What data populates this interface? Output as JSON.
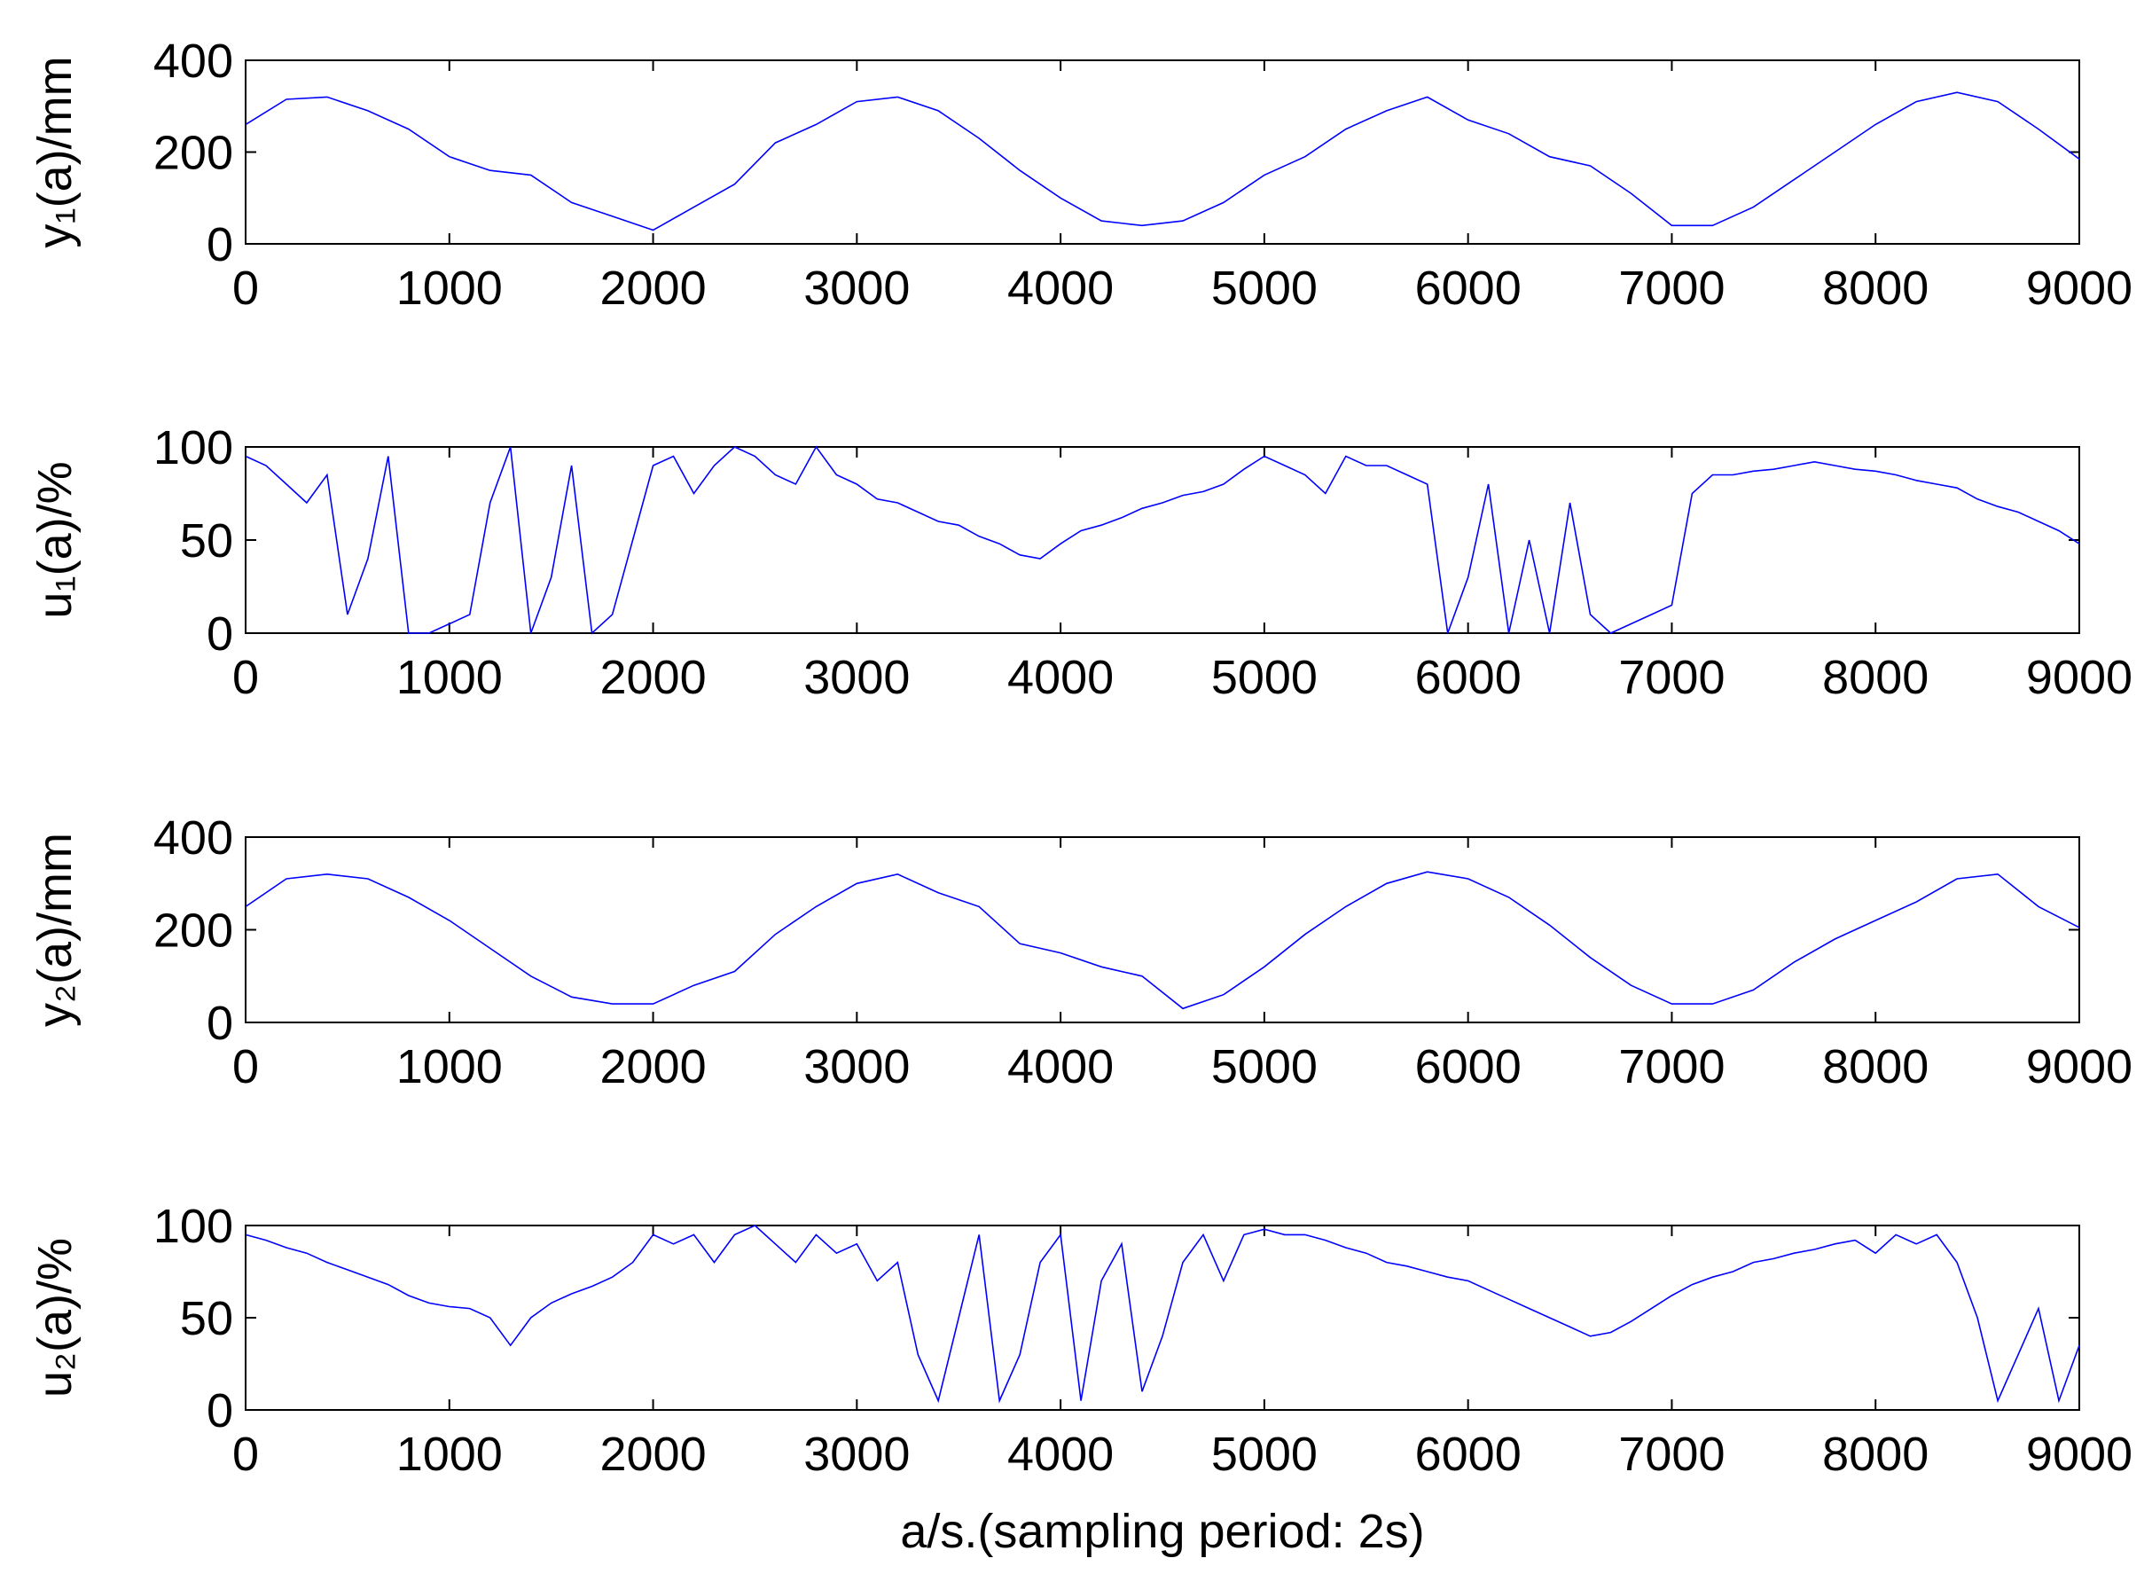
{
  "chart_data": [
    {
      "type": "line",
      "ylabel": "y₁(a)/mm",
      "color": "#0000ff",
      "x": [
        0,
        200,
        400,
        600,
        800,
        1000,
        1200,
        1400,
        1600,
        1800,
        2000,
        2200,
        2400,
        2600,
        2800,
        3000,
        3200,
        3400,
        3600,
        3800,
        4000,
        4200,
        4400,
        4600,
        4800,
        5000,
        5200,
        5400,
        5600,
        5800,
        6000,
        6200,
        6400,
        6600,
        6800,
        7000,
        7200,
        7400,
        7600,
        7800,
        8000,
        8200,
        8400,
        8600,
        8800,
        9000
      ],
      "values": [
        260,
        315,
        320,
        290,
        250,
        190,
        160,
        150,
        90,
        60,
        30,
        80,
        130,
        220,
        260,
        310,
        320,
        290,
        230,
        160,
        100,
        50,
        40,
        50,
        90,
        150,
        190,
        250,
        290,
        320,
        270,
        240,
        190,
        170,
        110,
        40,
        40,
        80,
        140,
        200,
        260,
        310,
        330,
        310,
        250,
        185
      ],
      "xlim": [
        0,
        9000
      ],
      "xticks": [
        0,
        1000,
        2000,
        3000,
        4000,
        5000,
        6000,
        7000,
        8000,
        9000
      ],
      "ylim": [
        0,
        400
      ],
      "yticks": [
        0,
        200,
        400
      ]
    },
    {
      "type": "line",
      "ylabel": "u₁(a)/%",
      "color": "#0000ff",
      "x": [
        0,
        100,
        200,
        300,
        400,
        500,
        600,
        700,
        800,
        900,
        1000,
        1100,
        1200,
        1300,
        1400,
        1500,
        1600,
        1700,
        1800,
        1900,
        2000,
        2100,
        2200,
        2300,
        2400,
        2500,
        2600,
        2700,
        2800,
        2900,
        3000,
        3100,
        3200,
        3300,
        3400,
        3500,
        3600,
        3700,
        3800,
        3900,
        4000,
        4100,
        4200,
        4300,
        4400,
        4500,
        4600,
        4700,
        4800,
        4900,
        5000,
        5100,
        5200,
        5300,
        5400,
        5500,
        5600,
        5700,
        5800,
        5900,
        6000,
        6100,
        6200,
        6300,
        6400,
        6500,
        6600,
        6700,
        6800,
        6900,
        7000,
        7100,
        7200,
        7300,
        7400,
        7500,
        7600,
        7700,
        7800,
        7900,
        8000,
        8100,
        8200,
        8300,
        8400,
        8500,
        8600,
        8700,
        8800,
        8900,
        9000
      ],
      "values": [
        95,
        90,
        80,
        70,
        85,
        10,
        40,
        95,
        0,
        0,
        5,
        10,
        70,
        100,
        0,
        30,
        90,
        0,
        10,
        50,
        90,
        95,
        75,
        90,
        100,
        95,
        85,
        80,
        100,
        85,
        80,
        72,
        70,
        65,
        60,
        58,
        52,
        48,
        42,
        40,
        48,
        55,
        58,
        62,
        67,
        70,
        74,
        76,
        80,
        88,
        95,
        90,
        85,
        75,
        95,
        90,
        90,
        85,
        80,
        0,
        30,
        80,
        0,
        50,
        0,
        70,
        10,
        0,
        5,
        10,
        15,
        75,
        85,
        85,
        87,
        88,
        90,
        92,
        90,
        88,
        87,
        85,
        82,
        80,
        78,
        72,
        68,
        65,
        60,
        55,
        48
      ],
      "xlim": [
        0,
        9000
      ],
      "xticks": [
        0,
        1000,
        2000,
        3000,
        4000,
        5000,
        6000,
        7000,
        8000,
        9000
      ],
      "ylim": [
        0,
        100
      ],
      "yticks": [
        0,
        50,
        100
      ]
    },
    {
      "type": "line",
      "ylabel": "y₂(a)/mm",
      "color": "#0000ff",
      "x": [
        0,
        200,
        400,
        600,
        800,
        1000,
        1200,
        1400,
        1600,
        1800,
        2000,
        2200,
        2400,
        2600,
        2800,
        3000,
        3200,
        3400,
        3600,
        3800,
        4000,
        4200,
        4400,
        4600,
        4800,
        5000,
        5200,
        5400,
        5600,
        5800,
        6000,
        6200,
        6400,
        6600,
        6800,
        7000,
        7200,
        7400,
        7600,
        7800,
        8000,
        8200,
        8400,
        8600,
        8800,
        9000
      ],
      "values": [
        250,
        310,
        320,
        310,
        270,
        220,
        160,
        100,
        55,
        40,
        40,
        80,
        110,
        190,
        250,
        300,
        320,
        280,
        250,
        170,
        150,
        120,
        100,
        30,
        60,
        120,
        190,
        250,
        300,
        325,
        310,
        270,
        210,
        140,
        80,
        40,
        40,
        70,
        130,
        180,
        220,
        260,
        310,
        320,
        250,
        205
      ],
      "xlim": [
        0,
        9000
      ],
      "xticks": [
        0,
        1000,
        2000,
        3000,
        4000,
        5000,
        6000,
        7000,
        8000,
        9000
      ],
      "ylim": [
        0,
        400
      ],
      "yticks": [
        0,
        200,
        400
      ]
    },
    {
      "type": "line",
      "ylabel": "u₂(a)/%",
      "xlabel": "a/s.(sampling period: 2s)",
      "color": "#0000ff",
      "x": [
        0,
        100,
        200,
        300,
        400,
        500,
        600,
        700,
        800,
        900,
        1000,
        1100,
        1200,
        1300,
        1400,
        1500,
        1600,
        1700,
        1800,
        1900,
        2000,
        2100,
        2200,
        2300,
        2400,
        2500,
        2600,
        2700,
        2800,
        2900,
        3000,
        3100,
        3200,
        3300,
        3400,
        3500,
        3600,
        3700,
        3800,
        3900,
        4000,
        4100,
        4200,
        4300,
        4400,
        4500,
        4600,
        4700,
        4800,
        4900,
        5000,
        5100,
        5200,
        5300,
        5400,
        5500,
        5600,
        5700,
        5800,
        5900,
        6000,
        6100,
        6200,
        6300,
        6400,
        6500,
        6600,
        6700,
        6800,
        6900,
        7000,
        7100,
        7200,
        7300,
        7400,
        7500,
        7600,
        7700,
        7800,
        7900,
        8000,
        8100,
        8200,
        8300,
        8400,
        8500,
        8600,
        8700,
        8800,
        8900,
        9000
      ],
      "values": [
        95,
        92,
        88,
        85,
        80,
        76,
        72,
        68,
        62,
        58,
        56,
        55,
        50,
        35,
        50,
        58,
        63,
        67,
        72,
        80,
        95,
        90,
        95,
        80,
        95,
        100,
        90,
        80,
        95,
        85,
        90,
        70,
        80,
        30,
        5,
        50,
        95,
        5,
        30,
        80,
        95,
        5,
        70,
        90,
        10,
        40,
        80,
        95,
        70,
        95,
        98,
        95,
        95,
        92,
        88,
        85,
        80,
        78,
        75,
        72,
        70,
        65,
        60,
        55,
        50,
        45,
        40,
        42,
        48,
        55,
        62,
        68,
        72,
        75,
        80,
        82,
        85,
        87,
        90,
        92,
        85,
        95,
        90,
        95,
        80,
        50,
        5,
        30,
        55,
        5,
        35
      ],
      "xlim": [
        0,
        9000
      ],
      "xticks": [
        0,
        1000,
        2000,
        3000,
        4000,
        5000,
        6000,
        7000,
        8000,
        9000
      ],
      "ylim": [
        0,
        100
      ],
      "yticks": [
        0,
        50,
        100
      ]
    }
  ]
}
